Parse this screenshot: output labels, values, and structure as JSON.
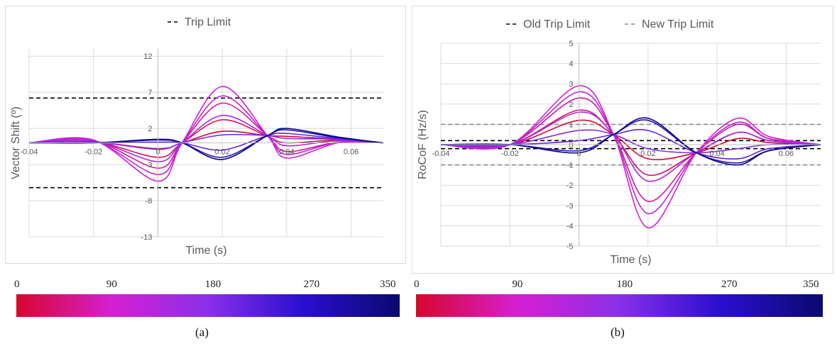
{
  "chart_data": [
    {
      "type": "line",
      "panel_caption": "(a)",
      "ylabel": "Vector Shift (º)",
      "xlabel": "Time (s)",
      "xlim": [
        -0.04,
        0.07
      ],
      "ylim": [
        -13,
        13
      ],
      "x_ticks": [
        -0.04,
        -0.02,
        0,
        0.02,
        0.04,
        0.06
      ],
      "x_tick_labels": [
        "-0.04",
        "-0.02",
        "0",
        "0.02",
        "0.04",
        "0.06"
      ],
      "y_ticks": [
        12,
        7,
        2,
        -3,
        -8,
        -13
      ],
      "y_tick_labels": [
        "12",
        "7",
        "2",
        "-3",
        "-8",
        "-13"
      ],
      "grid": true,
      "legend_position": "top-center",
      "legend": [
        {
          "label": "Trip Limit",
          "color": "#000000",
          "dash": "dashed"
        }
      ],
      "reference_lines": [
        {
          "y": 6.2,
          "color": "#000000"
        },
        {
          "y": -6.2,
          "color": "#000000"
        }
      ],
      "series": [
        {
          "angle": 0,
          "x": [
            -0.04,
            -0.02,
            0,
            0.0075,
            0.02,
            0.034,
            0.04,
            0.056,
            0.07
          ],
          "y": [
            0,
            0.1,
            -0.8,
            0,
            1.6,
            1.0,
            0.9,
            0.5,
            0
          ]
        },
        {
          "angle": 30,
          "x": [
            -0.04,
            -0.02,
            0,
            0.0075,
            0.02,
            0.034,
            0.04,
            0.056,
            0.07
          ],
          "y": [
            0,
            0.2,
            -2.0,
            0,
            3.2,
            0.9,
            0.0,
            0.4,
            0
          ]
        },
        {
          "angle": 60,
          "x": [
            -0.04,
            -0.02,
            0,
            0.0075,
            0.02,
            0.034,
            0.04,
            0.056,
            0.07
          ],
          "y": [
            0,
            0.3,
            -3.5,
            0,
            5.5,
            1.0,
            -1.2,
            0.1,
            0
          ]
        },
        {
          "angle": 90,
          "x": [
            -0.04,
            -0.02,
            0,
            0.0075,
            0.02,
            0.034,
            0.04,
            0.056,
            0.07
          ],
          "y": [
            0,
            0.4,
            -5.3,
            0,
            7.8,
            1.0,
            -2.1,
            0.0,
            0
          ]
        },
        {
          "angle": 120,
          "x": [
            -0.04,
            -0.02,
            0,
            0.0075,
            0.02,
            0.034,
            0.04,
            0.056,
            0.07
          ],
          "y": [
            0,
            0.3,
            -4.4,
            0,
            6.5,
            1.0,
            -1.6,
            0.1,
            0
          ]
        },
        {
          "angle": 150,
          "x": [
            -0.04,
            -0.02,
            0,
            0.0075,
            0.02,
            0.034,
            0.04,
            0.056,
            0.07
          ],
          "y": [
            0,
            0.2,
            -2.6,
            0,
            3.8,
            1.0,
            -0.4,
            0.3,
            0
          ]
        },
        {
          "angle": 180,
          "x": [
            -0.04,
            -0.02,
            0,
            0.0075,
            0.02,
            0.034,
            0.04,
            0.056,
            0.07
          ],
          "y": [
            0,
            0.1,
            -0.9,
            0,
            1.1,
            1.0,
            0.6,
            0.5,
            0
          ]
        },
        {
          "angle": 210,
          "x": [
            -0.04,
            -0.02,
            0,
            0.0075,
            0.02,
            0.034,
            0.04,
            0.056,
            0.07
          ],
          "y": [
            0,
            0.05,
            0.1,
            0,
            -1.0,
            1.0,
            1.3,
            0.6,
            0
          ]
        },
        {
          "angle": 270,
          "x": [
            -0.04,
            -0.02,
            0,
            0.0075,
            0.02,
            0.034,
            0.04,
            0.056,
            0.07
          ],
          "y": [
            0,
            0.0,
            0.4,
            0,
            -2.0,
            1.0,
            1.8,
            0.7,
            0
          ]
        },
        {
          "angle": 350,
          "x": [
            -0.04,
            -0.02,
            0,
            0.0075,
            0.02,
            0.034,
            0.04,
            0.056,
            0.07
          ],
          "y": [
            0,
            0.0,
            0.5,
            0,
            -2.3,
            1.0,
            2.0,
            0.8,
            0
          ]
        }
      ]
    },
    {
      "type": "line",
      "panel_caption": "(b)",
      "ylabel": "RoCoF (Hz/s)",
      "xlabel": "Time (s)",
      "xlim": [
        -0.04,
        0.07
      ],
      "ylim": [
        -5,
        5
      ],
      "x_ticks": [
        -0.04,
        -0.02,
        0,
        0.02,
        0.04,
        0.06
      ],
      "x_tick_labels": [
        "-0.04",
        "-0.02",
        "0",
        "0.02",
        "0.04",
        "0.06"
      ],
      "y_ticks": [
        5,
        4,
        3,
        2,
        1,
        0,
        -1,
        -2,
        -3,
        -4,
        -5
      ],
      "y_tick_labels": [
        "5",
        "4",
        "3",
        "2",
        "1",
        "0",
        "-1",
        "-2",
        "-3",
        "-4",
        "-5"
      ],
      "grid": true,
      "legend_position": "top-center",
      "legend": [
        {
          "label": "Old Trip Limit",
          "color": "#000000",
          "dash": "dashed"
        },
        {
          "label": "New Trip Limit",
          "color": "#8c8c8c",
          "dash": "dashed"
        }
      ],
      "reference_lines": [
        {
          "y": 0.2,
          "color": "#000000"
        },
        {
          "y": -0.2,
          "color": "#000000"
        },
        {
          "y": 1.0,
          "color": "#8c8c8c"
        },
        {
          "y": -1.0,
          "color": "#8c8c8c"
        }
      ],
      "series": [
        {
          "angle": 0,
          "x": [
            -0.04,
            -0.02,
            0,
            0.01,
            0.02,
            0.034,
            0.046,
            0.055,
            0.07
          ],
          "y": [
            0,
            0.0,
            1.2,
            0.5,
            -0.7,
            -0.4,
            0.3,
            0.1,
            0
          ]
        },
        {
          "angle": 30,
          "x": [
            -0.04,
            -0.02,
            0,
            0.01,
            0.02,
            0.034,
            0.046,
            0.055,
            0.07
          ],
          "y": [
            0,
            0.0,
            1.7,
            0.5,
            -1.5,
            -0.4,
            0.6,
            0.2,
            0
          ]
        },
        {
          "angle": 60,
          "x": [
            -0.04,
            -0.02,
            0,
            0.01,
            0.02,
            0.034,
            0.046,
            0.055,
            0.07
          ],
          "y": [
            0,
            0.0,
            2.3,
            0.5,
            -2.8,
            -0.4,
            1.0,
            0.3,
            0
          ]
        },
        {
          "angle": 90,
          "x": [
            -0.04,
            -0.02,
            0,
            0.01,
            0.02,
            0.034,
            0.046,
            0.055,
            0.07
          ],
          "y": [
            0,
            0.0,
            2.9,
            0.5,
            -4.1,
            -0.4,
            1.3,
            0.4,
            0
          ]
        },
        {
          "angle": 120,
          "x": [
            -0.04,
            -0.02,
            0,
            0.01,
            0.02,
            0.034,
            0.046,
            0.055,
            0.07
          ],
          "y": [
            0,
            0.0,
            2.6,
            0.5,
            -3.4,
            -0.4,
            1.1,
            0.3,
            0
          ]
        },
        {
          "angle": 150,
          "x": [
            -0.04,
            -0.02,
            0,
            0.01,
            0.02,
            0.034,
            0.046,
            0.055,
            0.07
          ],
          "y": [
            0,
            0.0,
            1.6,
            0.5,
            -1.8,
            -0.4,
            0.6,
            0.2,
            0
          ]
        },
        {
          "angle": 180,
          "x": [
            -0.04,
            -0.02,
            0,
            0.01,
            0.02,
            0.034,
            0.046,
            0.055,
            0.07
          ],
          "y": [
            0,
            0.0,
            0.7,
            0.5,
            -0.2,
            -0.4,
            -0.2,
            0.0,
            0
          ]
        },
        {
          "angle": 210,
          "x": [
            -0.04,
            -0.02,
            0,
            0.01,
            0.02,
            0.034,
            0.046,
            0.055,
            0.07
          ],
          "y": [
            0,
            0.0,
            0.2,
            0.5,
            0.7,
            -0.4,
            -0.7,
            -0.2,
            0
          ]
        },
        {
          "angle": 270,
          "x": [
            -0.04,
            -0.02,
            0,
            0.01,
            0.02,
            0.034,
            0.046,
            0.055,
            0.07
          ],
          "y": [
            0,
            0.0,
            -0.3,
            0.5,
            1.2,
            -0.4,
            -0.9,
            -0.3,
            0
          ]
        },
        {
          "angle": 350,
          "x": [
            -0.04,
            -0.02,
            0,
            0.01,
            0.02,
            0.034,
            0.046,
            0.055,
            0.07
          ],
          "y": [
            0,
            0.0,
            -0.4,
            0.5,
            1.3,
            -0.4,
            -1.0,
            -0.3,
            0
          ]
        }
      ]
    }
  ],
  "colorbars": [
    {
      "tick_labels": [
        "0",
        "90",
        "180",
        "270",
        "350"
      ],
      "tick_values": [
        0,
        90,
        180,
        270,
        350
      ],
      "range": [
        0,
        350
      ]
    },
    {
      "tick_labels": [
        "0",
        "90",
        "180",
        "270",
        "350"
      ],
      "tick_values": [
        0,
        90,
        180,
        270,
        350
      ],
      "range": [
        0,
        350
      ]
    }
  ],
  "colormap": [
    "#d7072c",
    "#d61fd1",
    "#8a30e8",
    "#2a0ed0",
    "#0a0a6e"
  ],
  "captions": [
    "(a)",
    "(b)"
  ]
}
